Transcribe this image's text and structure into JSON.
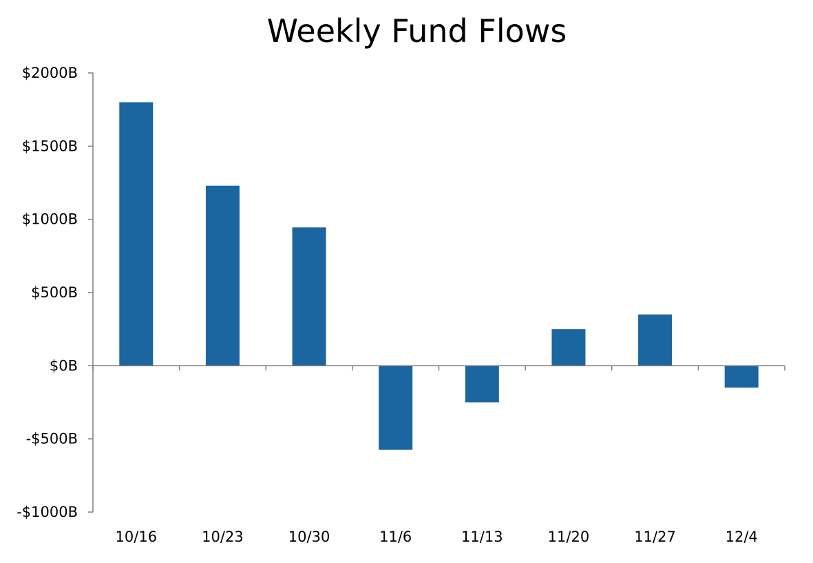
{
  "chart_data": {
    "type": "bar",
    "title": "Weekly Fund Flows",
    "xlabel": "",
    "ylabel": "",
    "categories": [
      "10/16",
      "10/23",
      "10/30",
      "11/6",
      "11/13",
      "11/20",
      "11/27",
      "12/4"
    ],
    "values": [
      1800,
      1230,
      945,
      -575,
      -250,
      250,
      350,
      -150
    ],
    "ylim": [
      -1000,
      2000
    ],
    "yticks": [
      2000,
      1500,
      1000,
      500,
      0,
      -500,
      -1000
    ],
    "ytick_labels": [
      "$2000B",
      "$1500B",
      "$1000B",
      "$500B",
      "$0B",
      "-$500B",
      "-$1000B"
    ],
    "bar_color": "#1b65a0",
    "axis_color": "#7f7f7f",
    "grid": false,
    "legend": "none"
  }
}
